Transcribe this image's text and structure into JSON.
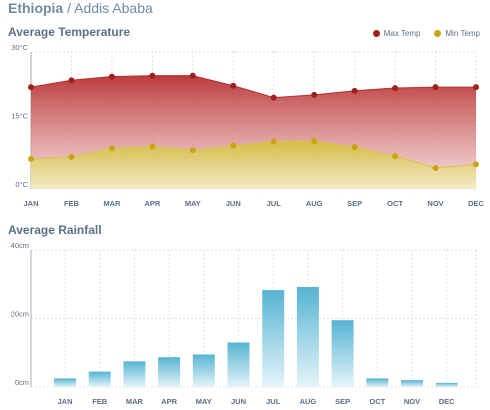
{
  "header": {
    "country": "Ethiopia",
    "separator": " / ",
    "city": "Addis Ababa"
  },
  "colors": {
    "max": "#9e2121",
    "min": "#c8a413",
    "rain": "#5bb8d6",
    "grid": "#d9d9d9"
  },
  "chart_data": [
    {
      "type": "area",
      "title": "Average Temperature",
      "categories": [
        "JAN",
        "FEB",
        "MAR",
        "APR",
        "MAY",
        "JUN",
        "JUL",
        "AUG",
        "SEP",
        "OCT",
        "NOV",
        "DEC"
      ],
      "y_ticks": [
        "0°C",
        "15°C",
        "30°C"
      ],
      "ylim": [
        0,
        30
      ],
      "grid": true,
      "legend": "top-right",
      "series": [
        {
          "name": "Max Temp",
          "values": [
            22.3,
            23.8,
            24.6,
            24.8,
            24.8,
            22.6,
            20.0,
            20.6,
            21.5,
            22.1,
            22.3,
            22.3
          ]
        },
        {
          "name": "Min Temp",
          "values": [
            6.6,
            7.0,
            8.9,
            9.3,
            8.5,
            9.5,
            10.4,
            10.5,
            9.2,
            7.2,
            4.6,
            5.4
          ]
        }
      ]
    },
    {
      "type": "bar",
      "title": "Average Rainfall",
      "categories": [
        "JAN",
        "FEB",
        "MAR",
        "APR",
        "MAY",
        "JUN",
        "JUL",
        "AUG",
        "SEP",
        "OCT",
        "NOV",
        "DEC"
      ],
      "y_ticks": [
        "0cm",
        "20cm",
        "40cm"
      ],
      "ylim": [
        0,
        40
      ],
      "grid": true,
      "values": [
        2.5,
        4.5,
        7.5,
        8.7,
        9.5,
        13.0,
        28.3,
        29.2,
        19.5,
        2.5,
        2.0,
        1.2
      ]
    }
  ]
}
